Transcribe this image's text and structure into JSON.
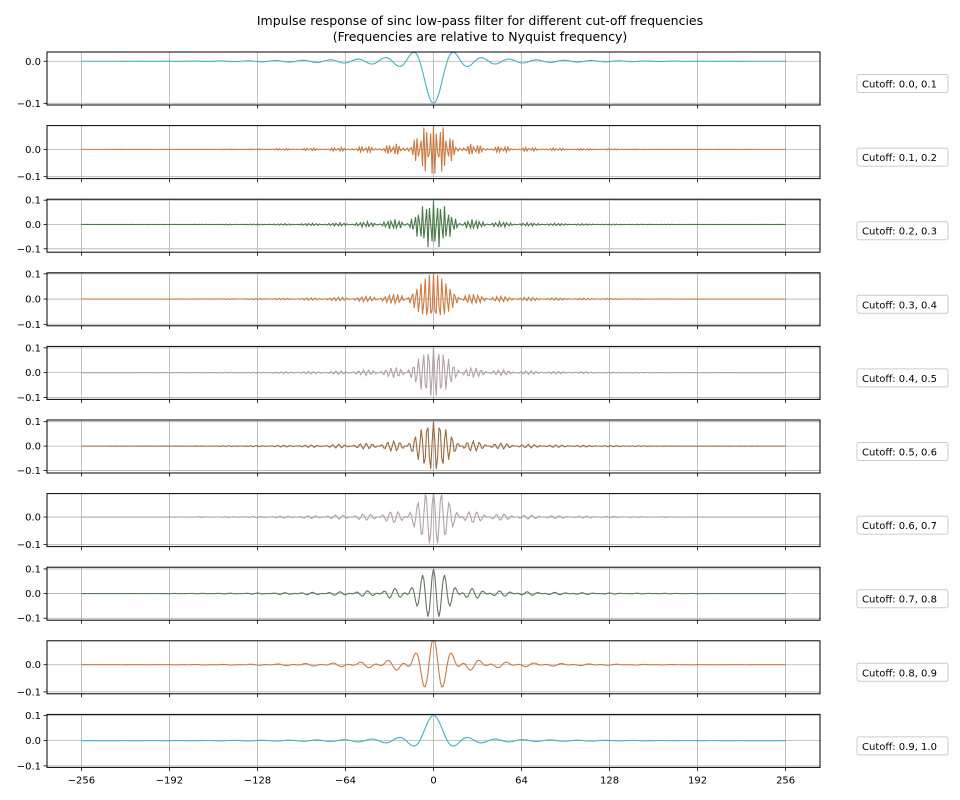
{
  "chart_data": {
    "type": "line",
    "title": "Impulse response of sinc low-pass filter for different cut-off frequencies",
    "subtitle": "(Frequencies are relative to Nyquist frequency)",
    "xlim": [
      -281,
      281
    ],
    "x_ticks": [
      -256,
      -192,
      -128,
      -64,
      0,
      64,
      128,
      192,
      256
    ],
    "grid": true,
    "legend_placement": "right of each panel",
    "panels": [
      {
        "label": "Cutoff: 0.0, 0.1",
        "band": [
          0.0,
          0.1
        ],
        "color": "#3fb3c4",
        "ylim": [
          -0.104,
          0.022
        ],
        "y_ticks": [
          -0.1,
          0.0
        ]
      },
      {
        "label": "Cutoff: 0.1, 0.2",
        "band": [
          0.1,
          0.2
        ],
        "color": "#cc7b43",
        "ylim": [
          -0.107,
          0.087
        ],
        "y_ticks": [
          -0.1,
          0.0
        ]
      },
      {
        "label": "Cutoff: 0.2, 0.3",
        "band": [
          0.2,
          0.3
        ],
        "color": "#4b7a4a",
        "ylim": [
          -0.114,
          0.104
        ],
        "y_ticks": [
          -0.1,
          0.0,
          0.1
        ]
      },
      {
        "label": "Cutoff: 0.3, 0.4",
        "band": [
          0.3,
          0.4
        ],
        "color": "#cc7b43",
        "ylim": [
          -0.106,
          0.104
        ],
        "y_ticks": [
          -0.1,
          0.0,
          0.1
        ]
      },
      {
        "label": "Cutoff: 0.4, 0.5",
        "band": [
          0.4,
          0.5
        ],
        "color": "#b3a0aa",
        "ylim": [
          -0.108,
          0.106
        ],
        "y_ticks": [
          -0.1,
          0.0,
          0.1
        ]
      },
      {
        "label": "Cutoff: 0.5, 0.6",
        "band": [
          0.5,
          0.6
        ],
        "color": "#9a6a3c",
        "ylim": [
          -0.11,
          0.107
        ],
        "y_ticks": [
          -0.1,
          0.0,
          0.1
        ]
      },
      {
        "label": "Cutoff: 0.6, 0.7",
        "band": [
          0.6,
          0.7
        ],
        "color": "#b3a0aa",
        "ylim": [
          -0.107,
          0.085
        ],
        "y_ticks": [
          -0.1,
          0.0
        ]
      },
      {
        "label": "Cutoff: 0.7, 0.8",
        "band": [
          0.7,
          0.8
        ],
        "color": "#5c7a5a",
        "ylim": [
          -0.108,
          0.107
        ],
        "y_ticks": [
          -0.1,
          0.0,
          0.1
        ]
      },
      {
        "label": "Cutoff: 0.8, 0.9",
        "band": [
          0.8,
          0.9
        ],
        "color": "#cc7b43",
        "ylim": [
          -0.107,
          0.088
        ],
        "y_ticks": [
          -0.1,
          0.0
        ]
      },
      {
        "label": "Cutoff: 0.9, 1.0",
        "band": [
          0.9,
          1.0
        ],
        "color": "#3fb3c4",
        "ylim": [
          -0.106,
          0.104
        ],
        "y_ticks": [
          -0.1,
          0.0,
          0.1
        ]
      }
    ]
  }
}
